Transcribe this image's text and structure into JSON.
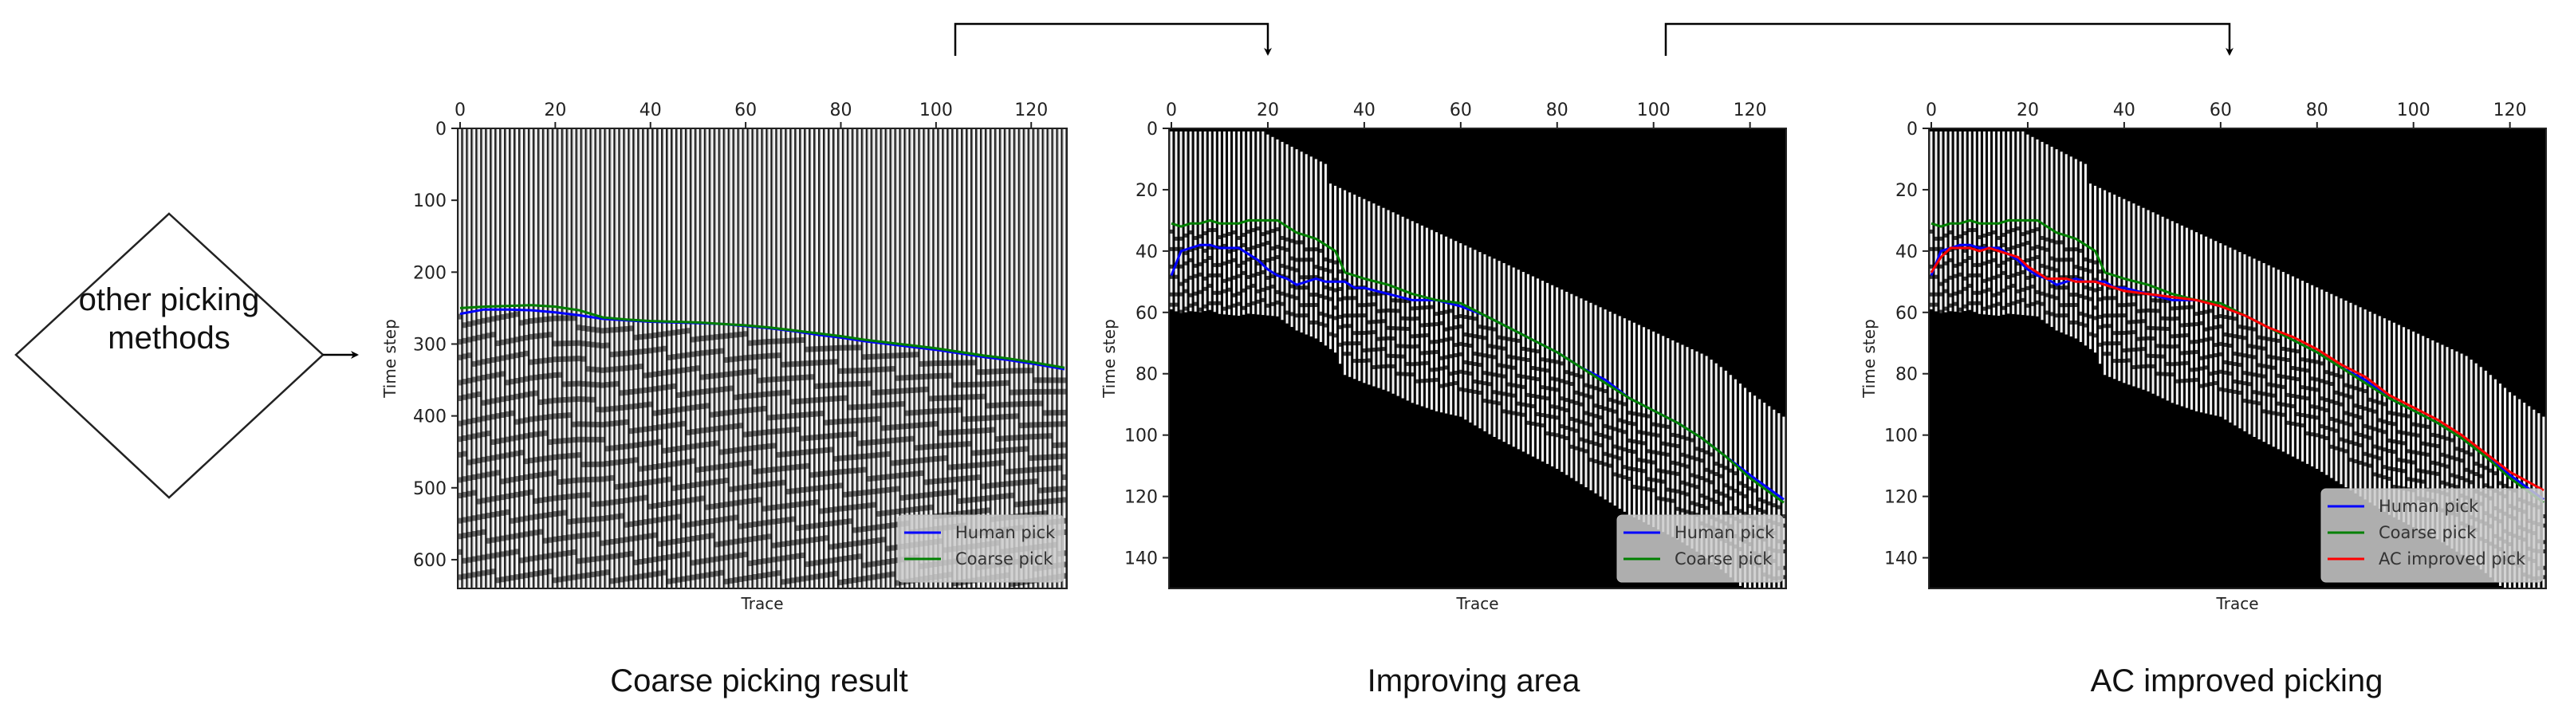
{
  "flow": {
    "source_node": {
      "label_line1": "other picking",
      "label_line2": "methods",
      "shape": "diamond"
    },
    "arrows": [
      {
        "from": "other-picking-methods",
        "to": "coarse-picking-result"
      },
      {
        "from": "coarse-picking-result",
        "to": "improving-area"
      },
      {
        "from": "improving-area",
        "to": "ac-improved-picking"
      }
    ]
  },
  "captions": {
    "panel1": "Coarse picking result",
    "panel2": "Improving area",
    "panel3": "AC improved picking"
  },
  "colors": {
    "human_pick": "#0000ff",
    "coarse_pick": "#008000",
    "ac_pick": "#ff0000",
    "legend_bg": "#cccccc"
  },
  "chart_data": [
    {
      "type": "line",
      "title": "Coarse picking result",
      "xlabel": "Trace",
      "ylabel": "Time step",
      "xlim": [
        -0.5,
        127.5
      ],
      "ylim": [
        640,
        0
      ],
      "xticks": [
        0,
        20,
        40,
        60,
        80,
        100,
        120
      ],
      "yticks": [
        0,
        100,
        200,
        300,
        400,
        500,
        600
      ],
      "x_axis_position": "top",
      "background": "seismic wiggle image (grayscale)",
      "legend": {
        "position": "lower right",
        "entries": [
          "Human pick",
          "Coarse pick"
        ]
      },
      "x": [
        0,
        5,
        10,
        15,
        20,
        25,
        30,
        35,
        40,
        45,
        50,
        55,
        60,
        65,
        70,
        75,
        80,
        85,
        90,
        95,
        100,
        105,
        110,
        115,
        120,
        127
      ],
      "series": [
        {
          "name": "Human pick",
          "color": "#0000ff",
          "values": [
            258,
            252,
            252,
            253,
            256,
            260,
            265,
            267,
            269,
            270,
            271,
            272,
            275,
            278,
            282,
            287,
            291,
            296,
            300,
            304,
            308,
            313,
            318,
            322,
            327,
            335
          ]
        },
        {
          "name": "Coarse pick",
          "color": "#008000",
          "values": [
            250,
            248,
            247,
            246,
            248,
            253,
            263,
            266,
            268,
            269,
            270,
            272,
            274,
            277,
            281,
            285,
            289,
            294,
            298,
            302,
            306,
            311,
            316,
            320,
            325,
            333
          ]
        }
      ]
    },
    {
      "type": "line",
      "title": "Improving area",
      "xlabel": "Trace",
      "ylabel": "Time step",
      "xlim": [
        -0.5,
        127.5
      ],
      "ylim": [
        150,
        0
      ],
      "xticks": [
        0,
        20,
        40,
        60,
        80,
        100,
        120
      ],
      "yticks": [
        20,
        40,
        60,
        80,
        100,
        120,
        140
      ],
      "x_axis_position": "top",
      "background": "masked seismic wiggle image (black outside improving band)",
      "legend": {
        "position": "lower right",
        "entries": [
          "Human pick",
          "Coarse pick"
        ]
      },
      "x": [
        0,
        2,
        4,
        6,
        8,
        10,
        12,
        14,
        16,
        18,
        20,
        22,
        24,
        26,
        28,
        30,
        32,
        34,
        36,
        38,
        40,
        45,
        50,
        55,
        60,
        65,
        70,
        75,
        80,
        85,
        90,
        95,
        100,
        105,
        110,
        115,
        120,
        127
      ],
      "series": [
        {
          "name": "Human pick",
          "color": "#0000ff",
          "values": [
            48,
            40,
            39,
            38,
            38,
            39,
            39,
            39,
            41,
            43,
            46,
            48,
            49,
            51,
            50,
            49,
            50,
            50,
            50,
            52,
            52,
            54,
            56,
            56,
            58,
            61,
            65,
            69,
            73,
            78,
            82,
            88,
            92,
            96,
            101,
            107,
            113,
            121
          ]
        },
        {
          "name": "Coarse pick",
          "color": "#008000",
          "values": [
            31,
            32,
            31,
            31,
            30,
            31,
            31,
            31,
            30,
            30,
            30,
            30,
            32,
            34,
            35,
            36,
            38,
            40,
            47,
            48,
            49,
            51,
            54,
            56,
            57,
            61,
            65,
            69,
            73,
            78,
            83,
            88,
            92,
            96,
            101,
            107,
            114,
            122
          ]
        }
      ]
    },
    {
      "type": "line",
      "title": "AC improved picking",
      "xlabel": "Trace",
      "ylabel": "Time step",
      "xlim": [
        -0.5,
        127.5
      ],
      "ylim": [
        150,
        0
      ],
      "xticks": [
        0,
        20,
        40,
        60,
        80,
        100,
        120
      ],
      "yticks": [
        20,
        40,
        60,
        80,
        100,
        120,
        140
      ],
      "x_axis_position": "top",
      "background": "masked seismic wiggle image (black outside improving band)",
      "legend": {
        "position": "lower right",
        "entries": [
          "Human pick",
          "Coarse pick",
          "AC improved pick"
        ]
      },
      "x": [
        0,
        2,
        4,
        6,
        8,
        10,
        12,
        14,
        16,
        18,
        20,
        22,
        24,
        26,
        28,
        30,
        32,
        34,
        36,
        38,
        40,
        45,
        50,
        55,
        60,
        65,
        70,
        75,
        80,
        85,
        90,
        95,
        100,
        105,
        110,
        115,
        120,
        127
      ],
      "series": [
        {
          "name": "Human pick",
          "color": "#0000ff",
          "values": [
            48,
            40,
            39,
            38,
            38,
            39,
            39,
            39,
            41,
            43,
            46,
            48,
            49,
            51,
            50,
            49,
            50,
            50,
            50,
            52,
            52,
            54,
            56,
            56,
            58,
            61,
            65,
            69,
            73,
            78,
            82,
            88,
            92,
            96,
            101,
            107,
            113,
            121
          ]
        },
        {
          "name": "Coarse pick",
          "color": "#008000",
          "values": [
            31,
            32,
            31,
            31,
            30,
            31,
            31,
            31,
            30,
            30,
            30,
            30,
            32,
            34,
            35,
            36,
            38,
            40,
            47,
            48,
            49,
            51,
            54,
            56,
            57,
            61,
            65,
            69,
            73,
            78,
            83,
            88,
            92,
            96,
            101,
            107,
            114,
            122
          ]
        },
        {
          "name": "AC improved pick",
          "color": "#ff0000",
          "values": [
            47,
            42,
            39,
            39,
            39,
            40,
            39,
            40,
            41,
            42,
            45,
            47,
            49,
            49,
            49,
            50,
            50,
            50,
            51,
            52,
            53,
            54,
            55,
            56,
            58,
            61,
            65,
            68,
            72,
            77,
            81,
            87,
            91,
            95,
            100,
            106,
            112,
            118
          ]
        }
      ]
    }
  ]
}
